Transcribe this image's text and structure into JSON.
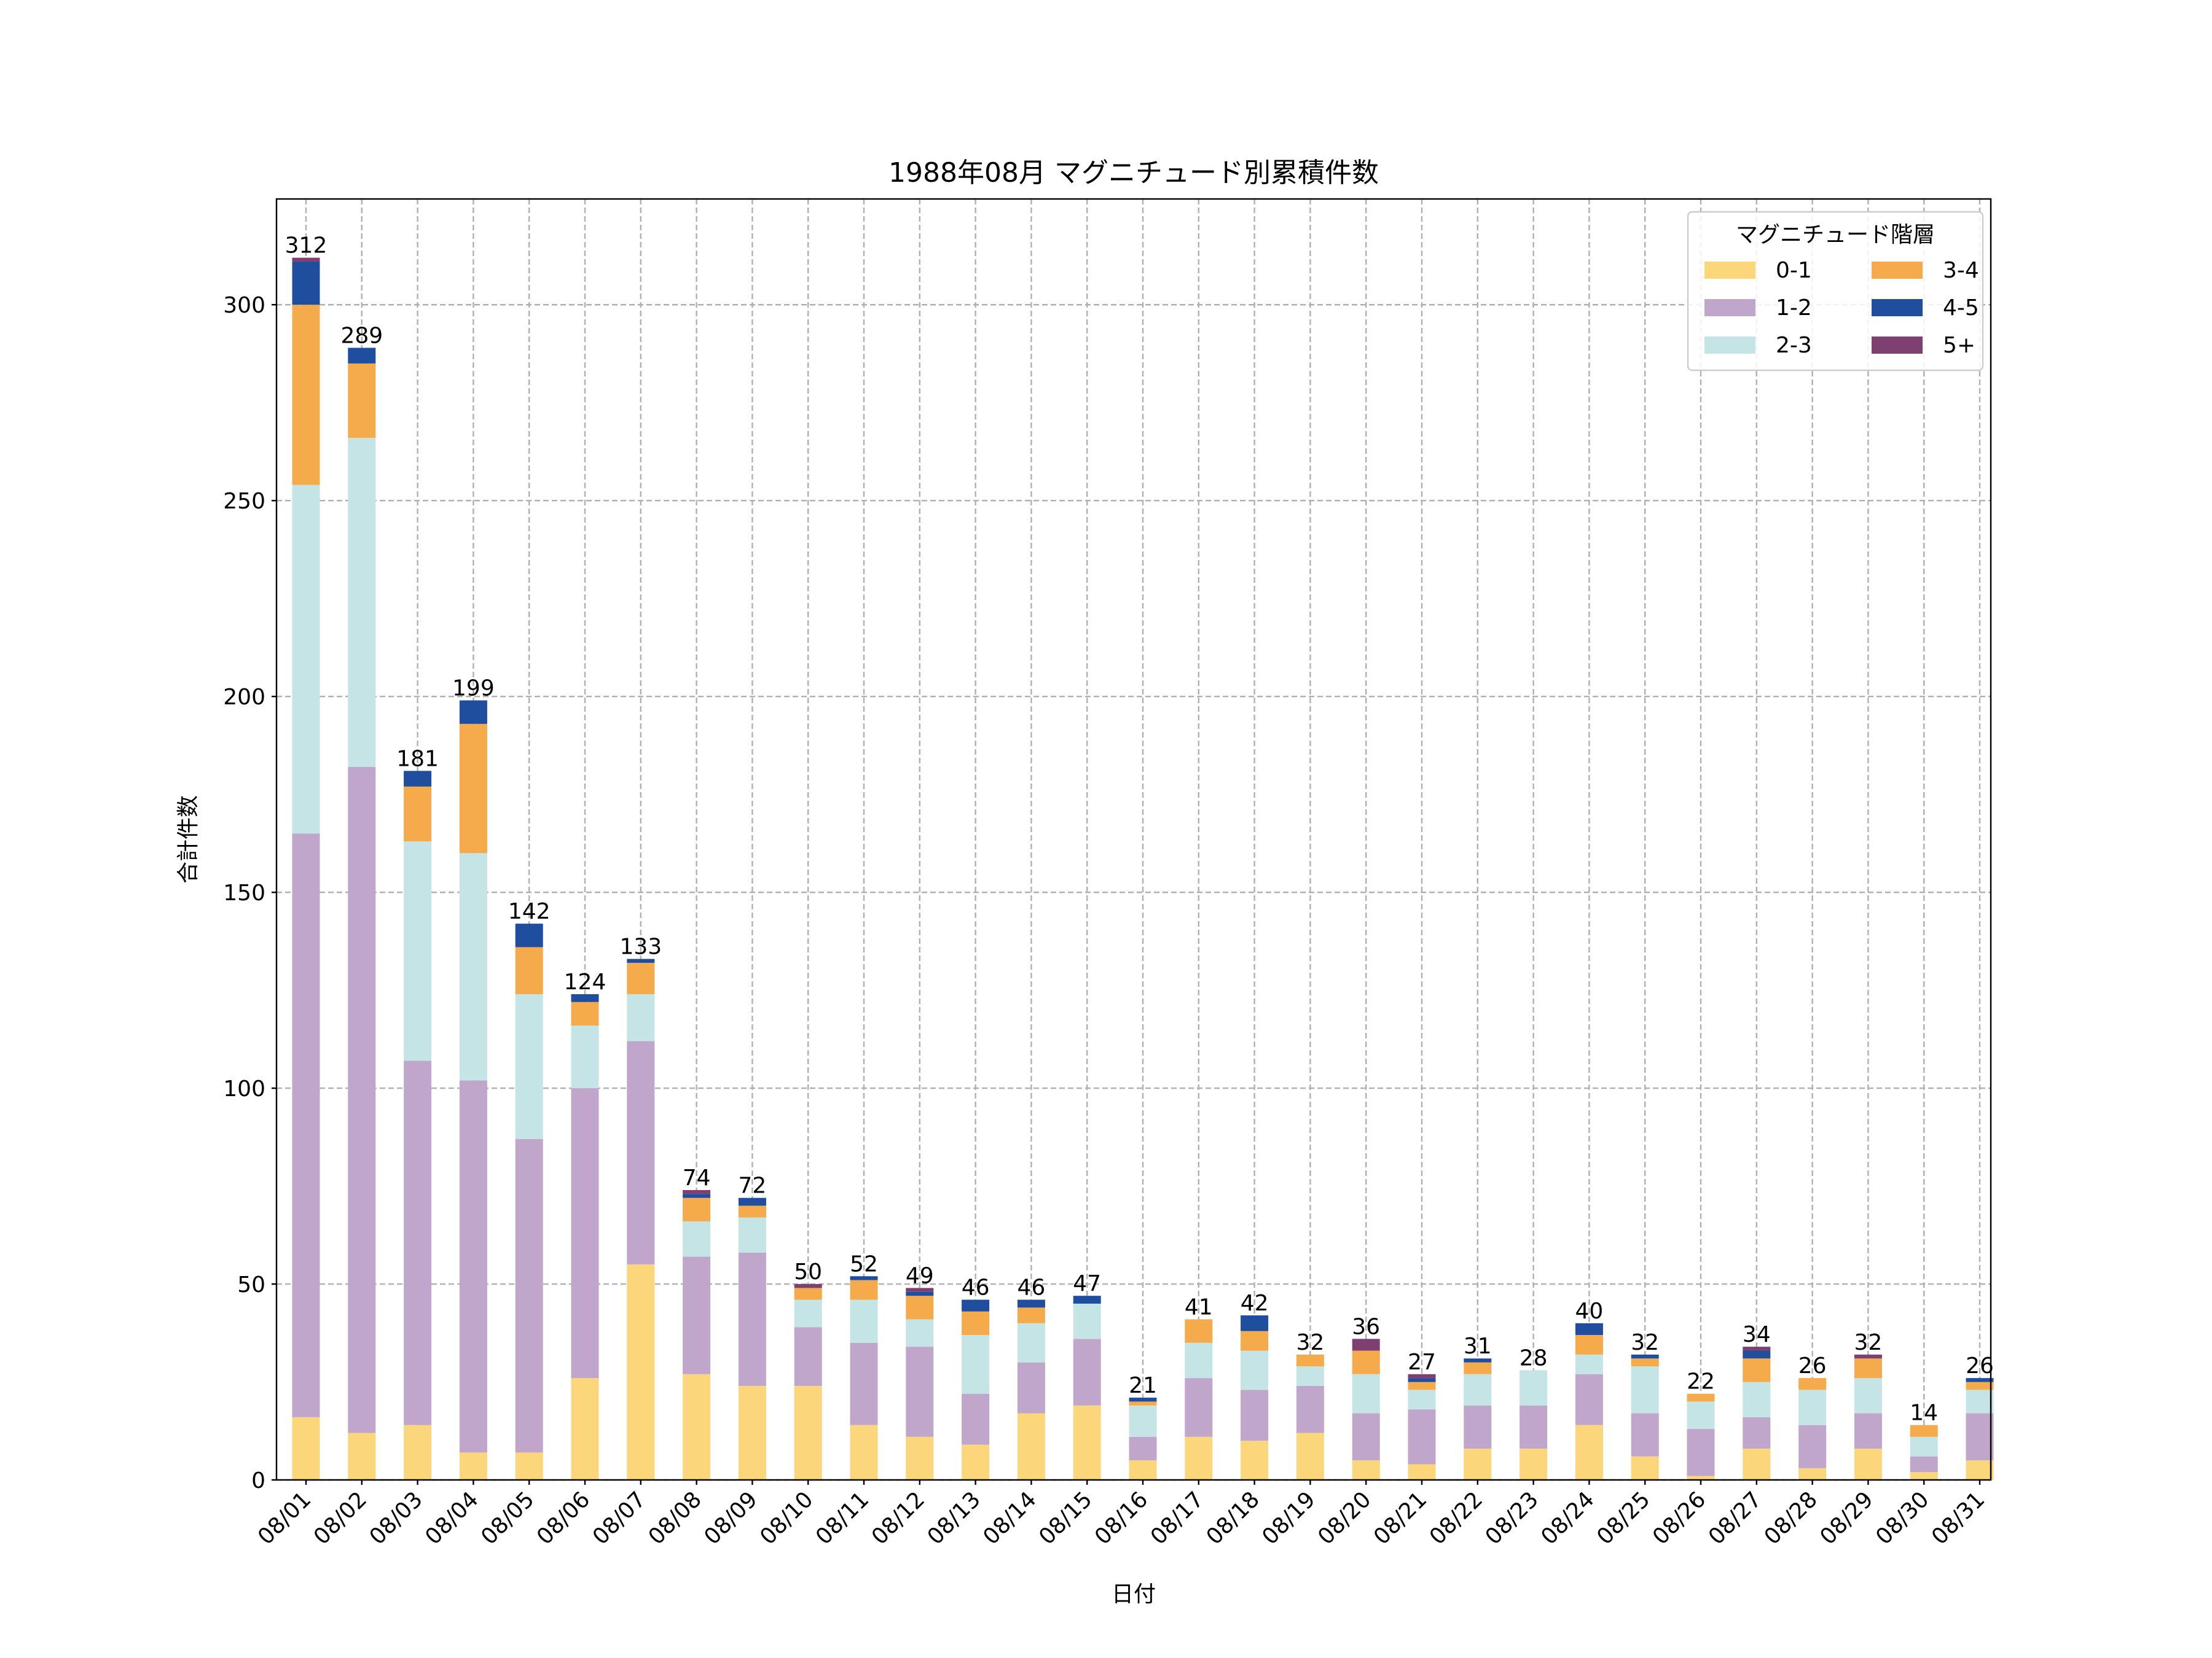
{
  "chart_data": {
    "type": "bar",
    "stacked": true,
    "title": "1988年08月 マグニチュード別累積件数",
    "xlabel": "日付",
    "ylabel": "合計件数",
    "ylim": [
      0,
      327
    ],
    "yticks": [
      0,
      50,
      100,
      150,
      200,
      250,
      300
    ],
    "grid": true,
    "legend": {
      "title": "マグニチュード階層",
      "position": "top-right",
      "columns": 2
    },
    "categories": [
      "08/01",
      "08/02",
      "08/03",
      "08/04",
      "08/05",
      "08/06",
      "08/07",
      "08/08",
      "08/09",
      "08/10",
      "08/11",
      "08/12",
      "08/13",
      "08/14",
      "08/15",
      "08/16",
      "08/17",
      "08/18",
      "08/19",
      "08/20",
      "08/21",
      "08/22",
      "08/23",
      "08/24",
      "08/25",
      "08/26",
      "08/27",
      "08/28",
      "08/29",
      "08/30",
      "08/31"
    ],
    "series": [
      {
        "name": "0-1",
        "color": "#fbd67a",
        "values": [
          16,
          12,
          14,
          7,
          7,
          26,
          55,
          27,
          24,
          24,
          14,
          11,
          9,
          17,
          19,
          5,
          11,
          10,
          12,
          5,
          4,
          8,
          8,
          14,
          6,
          1,
          8,
          3,
          8,
          2,
          5
        ]
      },
      {
        "name": "1-2",
        "color": "#c0a6ca",
        "values": [
          149,
          170,
          93,
          95,
          80,
          74,
          57,
          30,
          34,
          15,
          21,
          23,
          13,
          13,
          17,
          6,
          15,
          13,
          12,
          12,
          14,
          11,
          11,
          13,
          11,
          12,
          8,
          11,
          9,
          4,
          12
        ]
      },
      {
        "name": "2-3",
        "color": "#c4e4e6",
        "values": [
          89,
          84,
          56,
          58,
          37,
          16,
          12,
          9,
          9,
          7,
          11,
          7,
          15,
          10,
          9,
          8,
          9,
          10,
          5,
          10,
          5,
          8,
          9,
          5,
          12,
          7,
          9,
          9,
          9,
          5,
          6
        ]
      },
      {
        "name": "3-4",
        "color": "#f5ab4c",
        "values": [
          46,
          19,
          14,
          33,
          12,
          6,
          8,
          6,
          3,
          3,
          5,
          6,
          6,
          4,
          0,
          1,
          6,
          5,
          3,
          6,
          2,
          3,
          0,
          5,
          2,
          2,
          6,
          3,
          5,
          3,
          2
        ]
      },
      {
        "name": "4-5",
        "color": "#1f4e9f",
        "values": [
          11,
          4,
          4,
          6,
          6,
          2,
          1,
          1,
          2,
          0,
          1,
          1,
          3,
          2,
          2,
          1,
          0,
          4,
          0,
          0,
          1,
          1,
          0,
          3,
          1,
          0,
          2,
          0,
          0,
          0,
          1
        ]
      },
      {
        "name": "5+",
        "color": "#7d4070",
        "values": [
          1,
          0,
          0,
          0,
          0,
          0,
          0,
          1,
          0,
          1,
          0,
          1,
          0,
          0,
          0,
          0,
          0,
          0,
          0,
          3,
          1,
          0,
          0,
          0,
          0,
          0,
          1,
          0,
          1,
          0,
          0
        ]
      }
    ],
    "totals": [
      312,
      289,
      181,
      199,
      142,
      124,
      133,
      74,
      72,
      50,
      52,
      49,
      46,
      46,
      47,
      21,
      41,
      42,
      32,
      36,
      27,
      31,
      28,
      40,
      32,
      22,
      34,
      26,
      32,
      14,
      26
    ]
  }
}
